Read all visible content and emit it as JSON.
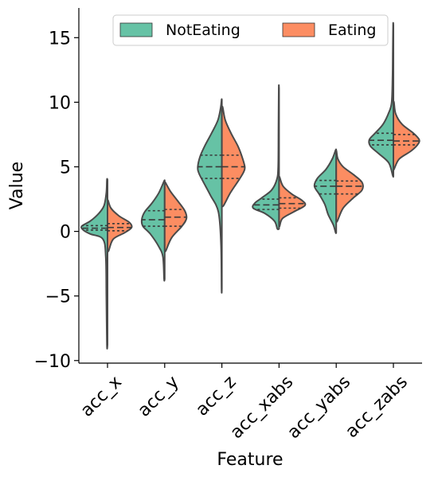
{
  "chart_data": {
    "type": "violin",
    "split": true,
    "xlabel": "Feature",
    "ylabel": "Value",
    "categories": [
      "acc_x",
      "acc_y",
      "acc_z",
      "acc_xabs",
      "acc_yabs",
      "acc_zabs"
    ],
    "ylim": [
      -10.2,
      17.3
    ],
    "yticks": [
      -10,
      -5,
      0,
      5,
      10,
      15
    ],
    "ytick_labels": [
      "−10",
      "−5",
      "0",
      "5",
      "10",
      "15"
    ],
    "legend": {
      "placement": "top",
      "ncol": 2
    },
    "series": [
      {
        "name": "NotEating",
        "color": "#66c2a5",
        "quartiles": [
          [
            0.1,
            0.25,
            0.45
          ],
          [
            0.4,
            0.9,
            1.6
          ],
          [
            4.1,
            5.0,
            5.9
          ],
          [
            1.7,
            2.05,
            2.5
          ],
          [
            2.9,
            3.5,
            3.95
          ],
          [
            6.7,
            7.05,
            7.6
          ]
        ],
        "profiles": [
          [
            [
              -8.8,
              0.01
            ],
            [
              -5,
              0.02
            ],
            [
              -2,
              0.03
            ],
            [
              -0.6,
              0.08
            ],
            [
              -0.2,
              0.3
            ],
            [
              0.1,
              0.42
            ],
            [
              0.4,
              0.45
            ],
            [
              0.8,
              0.3
            ],
            [
              1.4,
              0.15
            ],
            [
              2,
              0.06
            ],
            [
              3,
              0.02
            ],
            [
              4,
              0.01
            ]
          ],
          [
            [
              -3.7,
              0.01
            ],
            [
              -2,
              0.03
            ],
            [
              -1.2,
              0.1
            ],
            [
              -0.2,
              0.25
            ],
            [
              0.4,
              0.38
            ],
            [
              0.9,
              0.4
            ],
            [
              1.5,
              0.35
            ],
            [
              2.2,
              0.22
            ],
            [
              3,
              0.1
            ],
            [
              3.9,
              0.01
            ]
          ],
          [
            [
              -4.5,
              0.005
            ],
            [
              -1,
              0.015
            ],
            [
              1.5,
              0.06
            ],
            [
              2.8,
              0.2
            ],
            [
              3.8,
              0.32
            ],
            [
              4.5,
              0.4
            ],
            [
              5,
              0.42
            ],
            [
              5.8,
              0.38
            ],
            [
              6.6,
              0.3
            ],
            [
              7.6,
              0.18
            ],
            [
              8.6,
              0.07
            ],
            [
              9.6,
              0.02
            ],
            [
              10.2,
              0.005
            ]
          ],
          [
            [
              0.2,
              0.03
            ],
            [
              0.8,
              0.08
            ],
            [
              1.4,
              0.25
            ],
            [
              1.8,
              0.45
            ],
            [
              2.2,
              0.42
            ],
            [
              2.6,
              0.3
            ],
            [
              3.2,
              0.13
            ],
            [
              4,
              0.04
            ],
            [
              5,
              0.015
            ],
            [
              8,
              0.01
            ],
            [
              11.1,
              0.005
            ]
          ],
          [
            [
              -0.1,
              0.01
            ],
            [
              0.5,
              0.05
            ],
            [
              1.3,
              0.14
            ],
            [
              2.1,
              0.2
            ],
            [
              2.9,
              0.3
            ],
            [
              3.5,
              0.38
            ],
            [
              4.1,
              0.33
            ],
            [
              4.8,
              0.18
            ],
            [
              5.6,
              0.07
            ],
            [
              6.3,
              0.01
            ]
          ],
          [
            [
              4.3,
              0.01
            ],
            [
              5.3,
              0.08
            ],
            [
              6,
              0.25
            ],
            [
              6.6,
              0.4
            ],
            [
              7.1,
              0.42
            ],
            [
              7.6,
              0.32
            ],
            [
              8.3,
              0.18
            ],
            [
              9.2,
              0.08
            ],
            [
              10,
              0.03
            ],
            [
              12,
              0.015
            ],
            [
              14,
              0.01
            ],
            [
              16,
              0.005
            ]
          ]
        ]
      },
      {
        "name": "Eating",
        "color": "#fc8d62",
        "quartiles": [
          [
            0.05,
            0.3,
            0.6
          ],
          [
            0.4,
            1.1,
            1.7
          ],
          [
            4.1,
            5.0,
            5.9
          ],
          [
            1.8,
            2.15,
            2.6
          ],
          [
            2.9,
            3.5,
            3.9
          ],
          [
            6.7,
            7.0,
            7.5
          ]
        ],
        "profiles": [
          [
            [
              -1.5,
              0.02
            ],
            [
              -0.6,
              0.1
            ],
            [
              -0.1,
              0.3
            ],
            [
              0.3,
              0.42
            ],
            [
              0.7,
              0.38
            ],
            [
              1.2,
              0.2
            ],
            [
              1.8,
              0.06
            ],
            [
              2.4,
              0.01
            ]
          ],
          [
            [
              -1.5,
              0.02
            ],
            [
              -0.5,
              0.12
            ],
            [
              0.4,
              0.3
            ],
            [
              1,
              0.38
            ],
            [
              1.6,
              0.35
            ],
            [
              2.4,
              0.22
            ],
            [
              3.1,
              0.1
            ],
            [
              3.8,
              0.01
            ]
          ],
          [
            [
              2,
              0.03
            ],
            [
              3,
              0.15
            ],
            [
              4,
              0.3
            ],
            [
              4.6,
              0.38
            ],
            [
              5,
              0.4
            ],
            [
              5.8,
              0.35
            ],
            [
              6.6,
              0.28
            ],
            [
              7.6,
              0.16
            ],
            [
              8.6,
              0.06
            ],
            [
              9.6,
              0.015
            ]
          ],
          [
            [
              0.4,
              0.01
            ],
            [
              1,
              0.06
            ],
            [
              1.5,
              0.25
            ],
            [
              2,
              0.45
            ],
            [
              2.4,
              0.4
            ],
            [
              2.9,
              0.22
            ],
            [
              3.5,
              0.07
            ],
            [
              4.2,
              0.01
            ]
          ],
          [
            [
              0.8,
              0.02
            ],
            [
              1.8,
              0.12
            ],
            [
              2.6,
              0.3
            ],
            [
              3.2,
              0.45
            ],
            [
              3.8,
              0.45
            ],
            [
              4.4,
              0.3
            ],
            [
              5,
              0.12
            ],
            [
              5.6,
              0.03
            ],
            [
              6.2,
              0.005
            ]
          ],
          [
            [
              4.8,
              0.01
            ],
            [
              5.6,
              0.1
            ],
            [
              6.2,
              0.3
            ],
            [
              6.7,
              0.42
            ],
            [
              7.1,
              0.45
            ],
            [
              7.6,
              0.35
            ],
            [
              8.3,
              0.15
            ],
            [
              9.1,
              0.04
            ],
            [
              10,
              0.01
            ]
          ]
        ]
      }
    ]
  }
}
